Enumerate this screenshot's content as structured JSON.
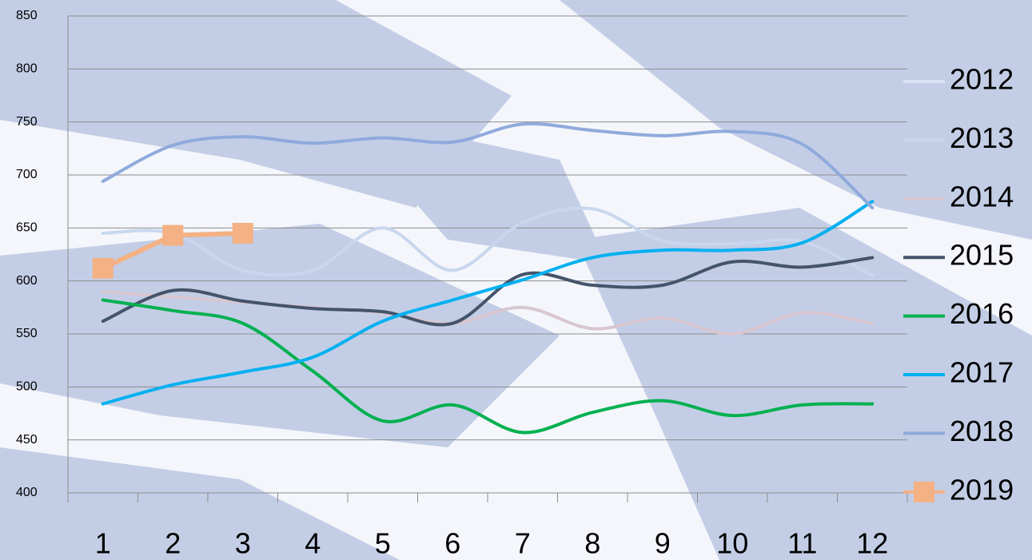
{
  "chart_data": {
    "type": "line",
    "categories": [
      "1",
      "2",
      "3",
      "4",
      "5",
      "6",
      "7",
      "8",
      "9",
      "10",
      "11",
      "12"
    ],
    "ylim": [
      400,
      850
    ],
    "yticks": [
      400,
      450,
      500,
      550,
      600,
      650,
      700,
      750,
      800,
      850
    ],
    "grid": true,
    "series": [
      {
        "name": "2012",
        "color": "#d9e1f2",
        "values": [
          null,
          null,
          null,
          null,
          null,
          null,
          null,
          null,
          null,
          null,
          null,
          null
        ]
      },
      {
        "name": "2013",
        "color": "#c9d7ee",
        "values": [
          645,
          645,
          610,
          610,
          650,
          610,
          655,
          668,
          638,
          635,
          637,
          605
        ]
      },
      {
        "name": "2014",
        "color": "#d8c6d0",
        "values": [
          590,
          585,
          580,
          575,
          570,
          560,
          575,
          555,
          565,
          550,
          570,
          560
        ]
      },
      {
        "name": "2015",
        "color": "#44546a",
        "values": [
          562,
          591,
          581,
          574,
          571,
          560,
          606,
          596,
          596,
          618,
          613,
          622
        ]
      },
      {
        "name": "2016",
        "color": "#00b050",
        "values": [
          582,
          572,
          560,
          515,
          468,
          483,
          457,
          476,
          487,
          473,
          483,
          484
        ]
      },
      {
        "name": "2017",
        "color": "#00b0f0",
        "values": [
          484,
          502,
          514,
          528,
          562,
          582,
          601,
          622,
          629,
          629,
          636,
          675
        ]
      },
      {
        "name": "2018",
        "color": "#8faadc",
        "values": [
          694,
          728,
          736,
          730,
          735,
          731,
          748,
          742,
          737,
          741,
          729,
          669
        ]
      },
      {
        "name": "2019",
        "color": "#f4b183",
        "marker": "square",
        "values": [
          612,
          643,
          645,
          null,
          null,
          null,
          null,
          null,
          null,
          null,
          null,
          null
        ]
      }
    ]
  }
}
